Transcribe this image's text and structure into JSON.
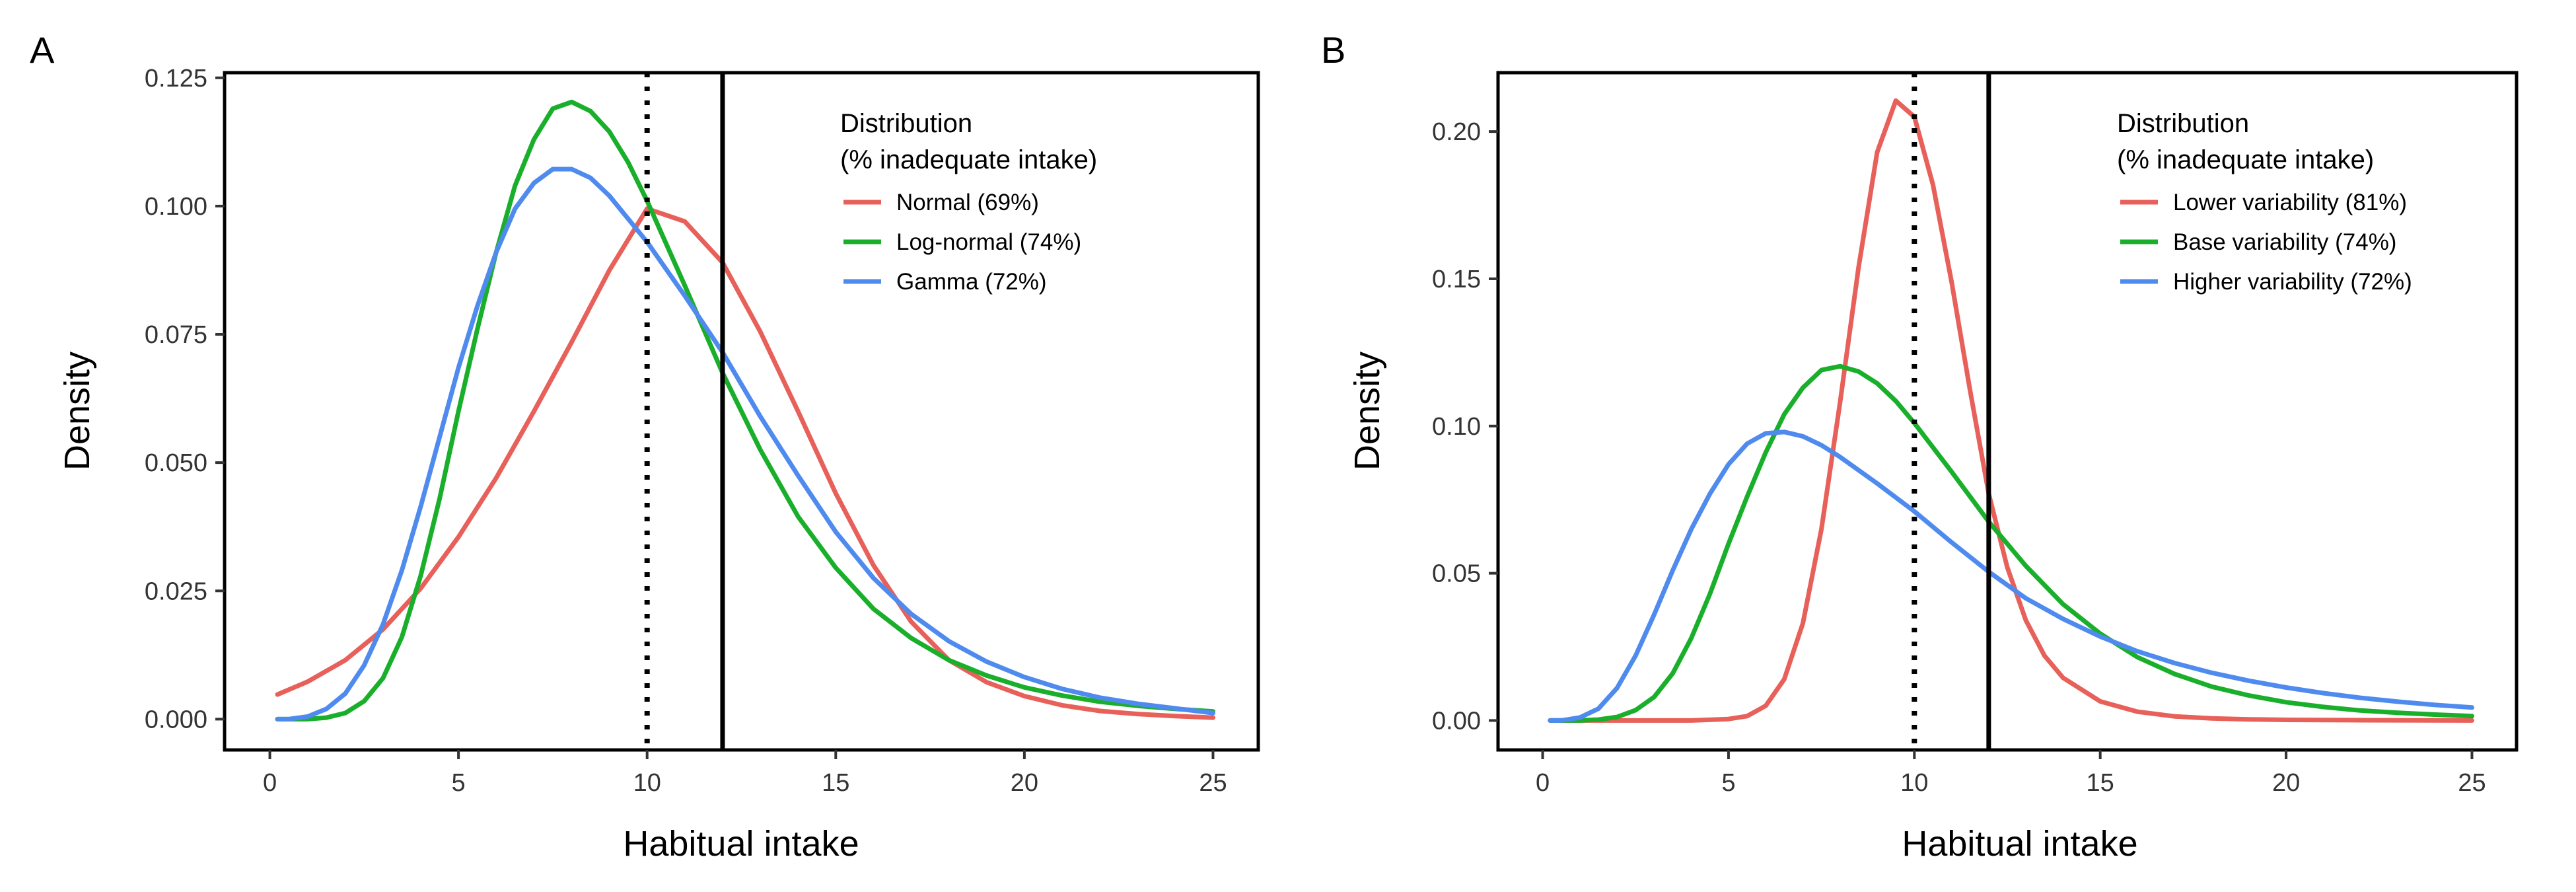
{
  "chart_data": [
    {
      "panel": "A",
      "type": "line",
      "xlabel": "Habitual intake",
      "ylabel": "Density",
      "xlim": [
        -1.2,
        26.2
      ],
      "ylim": [
        -0.006,
        0.126
      ],
      "x_ticks": [
        0,
        5,
        10,
        15,
        20,
        25
      ],
      "y_ticks": [
        0,
        0.025,
        0.05,
        0.075,
        0.1,
        0.125
      ],
      "y_tick_labels": [
        "0.000",
        "0.025",
        "0.050",
        "0.075",
        "0.100",
        "0.125"
      ],
      "grid": false,
      "legend_position": "top-right",
      "legend_title": [
        "Distribution",
        "(% inadequate intake)"
      ],
      "vlines": [
        {
          "x": 10,
          "style": "dotted",
          "color": "#000000"
        },
        {
          "x": 12,
          "style": "solid",
          "color": "#000000"
        }
      ],
      "series": [
        {
          "name": "Normal (69%)",
          "color": "#E8605A",
          "x": [
            0.2,
            1,
            2,
            3,
            4,
            5,
            6,
            7,
            8,
            9,
            10,
            11,
            12,
            13,
            14,
            15,
            16,
            17,
            18,
            19,
            20,
            21,
            22,
            23,
            24,
            25
          ],
          "y": [
            0.0048,
            0.0073,
            0.0115,
            0.0175,
            0.0255,
            0.0355,
            0.047,
            0.06,
            0.0735,
            0.0875,
            0.0995,
            0.097,
            0.089,
            0.0755,
            0.06,
            0.044,
            0.03,
            0.019,
            0.0115,
            0.0072,
            0.0045,
            0.0027,
            0.0016,
            0.001,
            0.0006,
            0.0003
          ]
        },
        {
          "name": "Log-normal (74%)",
          "color": "#1AAF2B",
          "x": [
            0.2,
            1,
            1.5,
            2,
            2.5,
            3,
            3.5,
            4,
            4.5,
            5,
            5.5,
            6,
            6.5,
            7,
            7.5,
            8,
            8.5,
            9,
            9.5,
            10,
            11,
            12,
            13,
            14,
            15,
            16,
            17,
            18,
            19,
            20,
            21,
            22,
            23,
            24,
            25
          ],
          "y": [
            0,
            0,
            0.0003,
            0.0012,
            0.0035,
            0.008,
            0.016,
            0.028,
            0.043,
            0.06,
            0.076,
            0.091,
            0.104,
            0.113,
            0.119,
            0.1203,
            0.1185,
            0.1145,
            0.1085,
            0.101,
            0.0845,
            0.0675,
            0.0525,
            0.0395,
            0.0295,
            0.0215,
            0.0158,
            0.0115,
            0.0085,
            0.0062,
            0.0046,
            0.0034,
            0.0026,
            0.002,
            0.0015
          ]
        },
        {
          "name": "Gamma (72%)",
          "color": "#4F8BEE",
          "x": [
            0.2,
            0.5,
            1,
            1.5,
            2,
            2.5,
            3,
            3.5,
            4,
            4.5,
            5,
            5.5,
            6,
            6.5,
            7,
            7.5,
            8,
            8.5,
            9,
            9.5,
            10,
            11,
            12,
            13,
            14,
            15,
            16,
            17,
            18,
            19,
            20,
            21,
            22,
            23,
            24,
            25
          ],
          "y": [
            0,
            0,
            0.0005,
            0.002,
            0.005,
            0.0105,
            0.0185,
            0.029,
            0.0415,
            0.055,
            0.0685,
            0.0805,
            0.091,
            0.0995,
            0.1045,
            0.1072,
            0.1072,
            0.1055,
            0.102,
            0.0975,
            0.093,
            0.0825,
            0.0715,
            0.059,
            0.0475,
            0.0365,
            0.0275,
            0.0205,
            0.0152,
            0.0112,
            0.0082,
            0.0059,
            0.0042,
            0.003,
            0.0021,
            0.0012
          ]
        }
      ]
    },
    {
      "panel": "B",
      "type": "line",
      "xlabel": "Habitual intake",
      "ylabel": "Density",
      "xlim": [
        -1.2,
        26.2
      ],
      "ylim": [
        -0.01,
        0.22
      ],
      "x_ticks": [
        0,
        5,
        10,
        15,
        20,
        25
      ],
      "y_ticks": [
        0,
        0.05,
        0.1,
        0.15,
        0.2
      ],
      "y_tick_labels": [
        "0.00",
        "0.05",
        "0.10",
        "0.15",
        "0.20"
      ],
      "grid": false,
      "legend_position": "top-right",
      "legend_title": [
        "Distribution",
        "(% inadequate intake)"
      ],
      "vlines": [
        {
          "x": 10,
          "style": "dotted",
          "color": "#000000"
        },
        {
          "x": 12,
          "style": "solid",
          "color": "#000000"
        }
      ],
      "series": [
        {
          "name": "Lower variability (81%)",
          "color": "#E8605A",
          "x": [
            0.2,
            1,
            2,
            3,
            4,
            5,
            5.5,
            6,
            6.5,
            7,
            7.5,
            8,
            8.5,
            9,
            9.5,
            10,
            10.5,
            11,
            11.5,
            12,
            12.5,
            13,
            13.5,
            14,
            15,
            16,
            17,
            18,
            19,
            20,
            22,
            25
          ],
          "y": [
            0,
            0,
            0,
            0,
            0,
            0.0005,
            0.0015,
            0.005,
            0.014,
            0.033,
            0.065,
            0.108,
            0.154,
            0.193,
            0.2105,
            0.205,
            0.182,
            0.149,
            0.112,
            0.077,
            0.052,
            0.034,
            0.022,
            0.0145,
            0.0065,
            0.003,
            0.0014,
            0.0007,
            0.0004,
            0.0002,
            0.0001,
            0
          ]
        },
        {
          "name": "Base variability (74%)",
          "color": "#1AAF2B",
          "x": [
            0.2,
            1,
            1.5,
            2,
            2.5,
            3,
            3.5,
            4,
            4.5,
            5,
            5.5,
            6,
            6.5,
            7,
            7.5,
            8,
            8.5,
            9,
            9.5,
            10,
            11,
            12,
            13,
            14,
            15,
            16,
            17,
            18,
            19,
            20,
            21,
            22,
            23,
            24,
            25
          ],
          "y": [
            0,
            0,
            0.0003,
            0.0012,
            0.0035,
            0.008,
            0.016,
            0.028,
            0.043,
            0.06,
            0.076,
            0.091,
            0.104,
            0.113,
            0.119,
            0.1203,
            0.1185,
            0.1145,
            0.1085,
            0.101,
            0.0845,
            0.0675,
            0.0525,
            0.0395,
            0.0295,
            0.0215,
            0.0158,
            0.0115,
            0.0085,
            0.0062,
            0.0046,
            0.0034,
            0.0026,
            0.002,
            0.0015
          ]
        },
        {
          "name": "Higher variability (72%)",
          "color": "#4F8BEE",
          "x": [
            0.2,
            0.5,
            1,
            1.5,
            2,
            2.5,
            3,
            3.5,
            4,
            4.5,
            5,
            5.5,
            6,
            6.5,
            7,
            7.5,
            8,
            9,
            10,
            11,
            12,
            13,
            14,
            15,
            16,
            17,
            18,
            19,
            20,
            21,
            22,
            23,
            24,
            25
          ],
          "y": [
            0,
            0,
            0.001,
            0.004,
            0.011,
            0.022,
            0.036,
            0.051,
            0.065,
            0.077,
            0.087,
            0.094,
            0.0975,
            0.098,
            0.0965,
            0.0935,
            0.0895,
            0.0805,
            0.071,
            0.0605,
            0.0505,
            0.0415,
            0.0345,
            0.0285,
            0.0235,
            0.0195,
            0.0162,
            0.0135,
            0.0112,
            0.0093,
            0.0077,
            0.0064,
            0.0053,
            0.0044
          ]
        }
      ]
    }
  ]
}
